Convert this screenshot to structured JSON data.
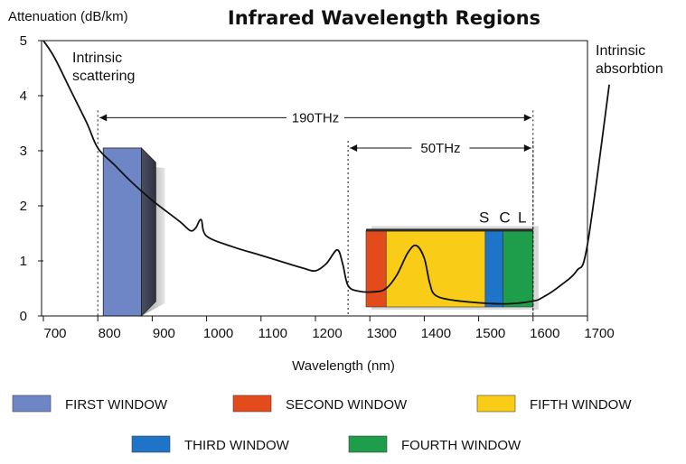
{
  "chart_data": {
    "type": "line",
    "title": "Infrared Wavelength Regions",
    "ylabel": "Attenuation (dB/km)",
    "xlabel": "Wavelength (nm)",
    "xlim": [
      700,
      1700
    ],
    "ylim": [
      0,
      5
    ],
    "x_ticks": [
      700,
      800,
      900,
      1000,
      1100,
      1200,
      1300,
      1400,
      1500,
      1600,
      1700
    ],
    "y_ticks": [
      0,
      1,
      2,
      3,
      4,
      5
    ],
    "grid": false,
    "series": [
      {
        "x": [
          700,
          720,
          750,
          780,
          800,
          830,
          860,
          900,
          950,
          970,
          980,
          990,
          1000,
          1050,
          1100,
          1150,
          1180,
          1200,
          1220,
          1240,
          1250,
          1260,
          1280,
          1310,
          1330,
          1350,
          1370,
          1385,
          1400,
          1410,
          1420,
          1450,
          1500,
          1550,
          1600,
          1620,
          1650,
          1680,
          1700,
          1740
        ],
        "y": [
          5.0,
          4.7,
          4.1,
          3.5,
          3.05,
          2.75,
          2.45,
          2.1,
          1.72,
          1.55,
          1.6,
          1.75,
          1.45,
          1.25,
          1.1,
          0.95,
          0.86,
          0.82,
          0.95,
          1.2,
          0.95,
          0.55,
          0.45,
          0.44,
          0.5,
          0.75,
          1.15,
          1.28,
          1.05,
          0.6,
          0.38,
          0.29,
          0.24,
          0.22,
          0.27,
          0.35,
          0.55,
          0.82,
          1.3,
          4.2
        ]
      }
    ],
    "windows": [
      {
        "name": "FIRST WINDOW",
        "range": [
          810,
          880
        ],
        "top": 3.05,
        "color": "#6f86c6"
      },
      {
        "name": "SECOND WINDOW",
        "range": [
          1293,
          1330
        ],
        "top": 1.55,
        "color": "#e34a1c"
      },
      {
        "name": "FIFTH WINDOW",
        "range": [
          1330,
          1512
        ],
        "top": 1.55,
        "color": "#f9cc18"
      },
      {
        "name": "THIRD WINDOW",
        "range": [
          1512,
          1545
        ],
        "top": 1.55,
        "color": "#1e74c6"
      },
      {
        "name": "FOURTH WINDOW",
        "range": [
          1545,
          1600
        ],
        "top": 1.55,
        "color": "#1e9e4a"
      }
    ],
    "band_letters": [
      {
        "text": "S",
        "x": 1510
      },
      {
        "text": "C",
        "x": 1548
      },
      {
        "text": "L",
        "x": 1580
      }
    ],
    "bands": [
      {
        "label": "190THz",
        "from": 800,
        "to": 1600,
        "y": 3.6
      },
      {
        "label": "50THz",
        "from": 1260,
        "to": 1600,
        "y": 3.05
      }
    ],
    "annotations": [
      {
        "lines": [
          "Intrinsic",
          "scattering"
        ],
        "at": [
          755,
          4.6
        ]
      },
      {
        "lines": [
          "Intrinsic",
          "absorbtion"
        ],
        "at": [
          1710,
          4.8
        ]
      }
    ]
  }
}
